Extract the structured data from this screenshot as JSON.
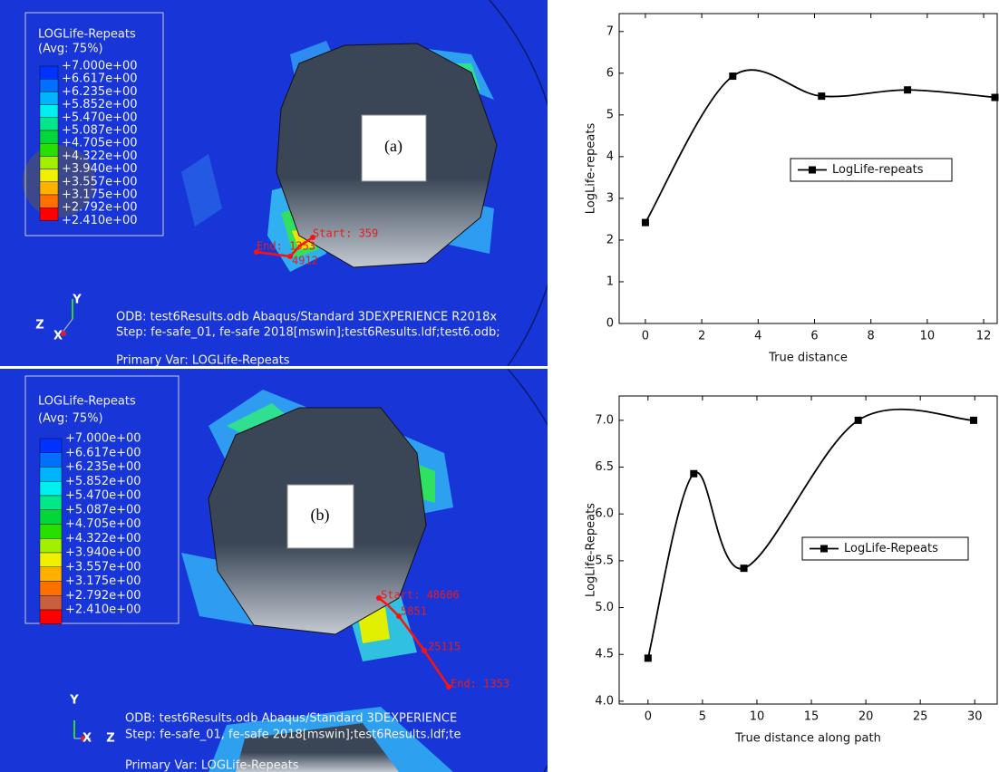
{
  "panels": [
    {
      "legend_title": "LOGLife-Repeats",
      "legend_subtitle": "(Avg: 75%)",
      "legend_labels": [
        "+7.000e+00",
        "+6.617e+00",
        "+6.235e+00",
        "+5.852e+00",
        "+5.470e+00",
        "+5.087e+00",
        "+4.705e+00",
        "+4.322e+00",
        "+3.940e+00",
        "+3.557e+00",
        "+3.175e+00",
        "+2.792e+00",
        "+2.410e+00"
      ],
      "legend_colors": [
        "#0033ff",
        "#0070ff",
        "#00b4ff",
        "#00f0f0",
        "#00e88a",
        "#00d83a",
        "#28e000",
        "#a0f000",
        "#f0f000",
        "#ffb000",
        "#ff7000",
        "#ff0000"
      ],
      "label": "(a)",
      "info": [
        "ODB: test6Results.odb    Abaqus/Standard 3DEXPERIENCE R2018x",
        "Step: fe-safe_01, fe-safe 2018[mswin];test6Results.ldf;test6.odb;",
        "Primary Var: LOGLife-Repeats"
      ],
      "path_labels": [
        "Start: 359",
        "End: 1353",
        "4912"
      ],
      "triad": [
        "Y",
        "Z",
        "X"
      ]
    },
    {
      "legend_title": "LOGLife-Repeats",
      "legend_subtitle": "(Avg: 75%)",
      "legend_labels": [
        "+7.000e+00",
        "+6.617e+00",
        "+6.235e+00",
        "+5.852e+00",
        "+5.470e+00",
        "+5.087e+00",
        "+4.705e+00",
        "+4.322e+00",
        "+3.940e+00",
        "+3.557e+00",
        "+3.175e+00",
        "+2.792e+00",
        "+2.410e+00"
      ],
      "legend_colors": [
        "#0033ff",
        "#0070ff",
        "#00b4ff",
        "#00f0f0",
        "#00e88a",
        "#00d83a",
        "#28e000",
        "#a0f000",
        "#f0f000",
        "#ffb000",
        "#ff7000",
        "#c86040",
        "#ff0000"
      ],
      "label": "(b)",
      "info": [
        "ODB: test6Results.odb    Abaqus/Standard 3DEXPERIENCE",
        "Step: fe-safe_01, fe-safe 2018[mswin];test6Results.ldf;te",
        "Primary Var: LOGLife-Repeats"
      ],
      "path_labels": [
        "Start: 48606",
        "5851",
        "25115",
        "End: 1353"
      ],
      "triad": [
        "Y",
        "X",
        "Z"
      ]
    }
  ],
  "chart_data": [
    {
      "type": "line",
      "x_label": "True distance",
      "y_label": "LogLife-repeats",
      "x": [
        0,
        3.1,
        6.25,
        9.3,
        12.4
      ],
      "series": [
        {
          "name": "LogLife-repeats",
          "color": "#000000",
          "values": [
            2.42,
            5.93,
            5.45,
            5.6,
            5.42
          ]
        }
      ],
      "xlim": [
        -0.93,
        12.48
      ],
      "ylim": [
        0,
        7.43
      ],
      "xticks": [
        0,
        2,
        4,
        6,
        8,
        10,
        12
      ],
      "yticks": [
        0,
        1,
        2,
        3,
        4,
        5,
        6,
        7
      ]
    },
    {
      "type": "line",
      "x_label": "True distance along path",
      "y_label": "LogLife-Repeats",
      "x": [
        0,
        4.2,
        8.8,
        19.3,
        29.9
      ],
      "series": [
        {
          "name": "LogLife-Repeats",
          "color": "#000000",
          "values": [
            4.46,
            6.43,
            5.42,
            7.0,
            7.0
          ]
        }
      ],
      "xlim": [
        -2.65,
        32.06
      ],
      "ylim": [
        3.97,
        7.26
      ],
      "xticks": [
        0,
        5,
        10,
        15,
        20,
        25,
        30
      ],
      "yticks": [
        {
          "value": 4,
          "label": "4.0"
        },
        {
          "value": 4.5,
          "label": "4.5"
        },
        {
          "value": 5,
          "label": "5.0"
        },
        {
          "value": 5.5,
          "label": "5.5"
        },
        {
          "value": 6,
          "label": "6.0"
        },
        {
          "value": 6.5,
          "label": "6.5"
        },
        {
          "value": 7,
          "label": "7.0"
        }
      ]
    }
  ]
}
